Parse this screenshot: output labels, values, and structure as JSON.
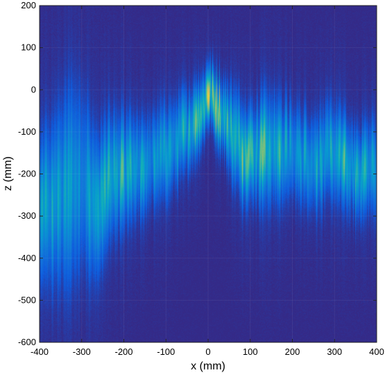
{
  "chart_data": {
    "type": "heatmap",
    "title": "",
    "xlabel": "x (mm)",
    "ylabel": "z (mm)",
    "xlim": [
      -400,
      400
    ],
    "ylim": [
      -600,
      200
    ],
    "xticks": [
      -400,
      -300,
      -200,
      -100,
      0,
      100,
      200,
      300,
      400
    ],
    "yticks": [
      -600,
      -500,
      -400,
      -300,
      -200,
      -100,
      0,
      100,
      200
    ],
    "colormap": "parula",
    "background_color": "#352a87",
    "intensity_ridge": {
      "x": [
        -400,
        -360,
        -330,
        -300,
        -260,
        -240,
        -200,
        -150,
        -100,
        -50,
        -10,
        0,
        20,
        40,
        60,
        80,
        100,
        140,
        200,
        250,
        300,
        350,
        400
      ],
      "z": [
        -270,
        -260,
        -230,
        -220,
        -280,
        -220,
        -200,
        -180,
        -150,
        -100,
        -40,
        0,
        -40,
        -70,
        -110,
        -140,
        -150,
        -140,
        -150,
        -170,
        -150,
        -200,
        -180
      ],
      "spread": [
        90,
        110,
        130,
        120,
        90,
        80,
        70,
        60,
        60,
        50,
        40,
        35,
        40,
        45,
        60,
        60,
        55,
        70,
        60,
        60,
        60,
        55,
        60
      ],
      "intensity": [
        0.45,
        0.5,
        0.5,
        0.45,
        0.55,
        0.6,
        0.6,
        0.5,
        0.5,
        0.55,
        0.7,
        0.9,
        0.85,
        0.85,
        0.65,
        0.7,
        0.75,
        0.6,
        0.55,
        0.55,
        0.5,
        0.65,
        0.4
      ]
    }
  }
}
